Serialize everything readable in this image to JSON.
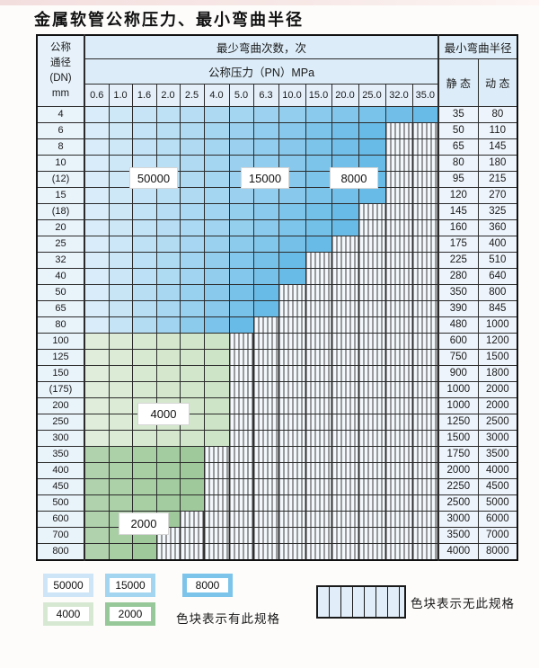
{
  "title": "金属软管公称压力、最小弯曲半径",
  "table": {
    "header": {
      "dn_lines": [
        "公称",
        "通径",
        "(DN)",
        "mm"
      ],
      "bend_cycles": "最少弯曲次数，次",
      "pressure": "公称压力（PN）MPa",
      "pressure_cols": [
        "0.6",
        "1.0",
        "1.6",
        "2.0",
        "2.5",
        "4.0",
        "5.0",
        "6.3",
        "10.0",
        "15.0",
        "20.0",
        "25.0",
        "32.0",
        "35.0"
      ],
      "radius": "最小弯曲半径",
      "static": "静 态",
      "dynamic": "动 态"
    },
    "rows": [
      {
        "dn": "4",
        "band": "blue",
        "max_pn": "35.0",
        "static": "35",
        "dynamic": "80"
      },
      {
        "dn": "6",
        "band": "blue",
        "max_pn": "25.0",
        "static": "50",
        "dynamic": "110"
      },
      {
        "dn": "8",
        "band": "blue",
        "max_pn": "25.0",
        "static": "65",
        "dynamic": "145"
      },
      {
        "dn": "10",
        "band": "blue",
        "max_pn": "25.0",
        "static": "80",
        "dynamic": "180"
      },
      {
        "dn": "(12)",
        "band": "blue",
        "max_pn": "25.0",
        "static": "95",
        "dynamic": "215"
      },
      {
        "dn": "15",
        "band": "blue",
        "max_pn": "25.0",
        "static": "120",
        "dynamic": "270"
      },
      {
        "dn": "(18)",
        "band": "blue",
        "max_pn": "20.0",
        "static": "145",
        "dynamic": "325"
      },
      {
        "dn": "20",
        "band": "blue",
        "max_pn": "20.0",
        "static": "160",
        "dynamic": "360"
      },
      {
        "dn": "25",
        "band": "blue",
        "max_pn": "15.0",
        "static": "175",
        "dynamic": "400"
      },
      {
        "dn": "32",
        "band": "blue",
        "max_pn": "10.0",
        "static": "225",
        "dynamic": "510"
      },
      {
        "dn": "40",
        "band": "blue",
        "max_pn": "10.0",
        "static": "280",
        "dynamic": "640"
      },
      {
        "dn": "50",
        "band": "blue",
        "max_pn": "6.3",
        "static": "350",
        "dynamic": "800"
      },
      {
        "dn": "65",
        "band": "blue",
        "max_pn": "6.3",
        "static": "390",
        "dynamic": "845"
      },
      {
        "dn": "80",
        "band": "blue",
        "max_pn": "5.0",
        "static": "480",
        "dynamic": "1000"
      },
      {
        "dn": "100",
        "band": "green1",
        "max_pn": "4.0",
        "static": "600",
        "dynamic": "1200"
      },
      {
        "dn": "125",
        "band": "green1",
        "max_pn": "4.0",
        "static": "750",
        "dynamic": "1500"
      },
      {
        "dn": "150",
        "band": "green1",
        "max_pn": "4.0",
        "static": "900",
        "dynamic": "1800"
      },
      {
        "dn": "(175)",
        "band": "green1",
        "max_pn": "4.0",
        "static": "1000",
        "dynamic": "2000"
      },
      {
        "dn": "200",
        "band": "green1",
        "max_pn": "4.0",
        "static": "1000",
        "dynamic": "2000"
      },
      {
        "dn": "250",
        "band": "green1",
        "max_pn": "4.0",
        "static": "1250",
        "dynamic": "2500"
      },
      {
        "dn": "300",
        "band": "green1",
        "max_pn": "4.0",
        "static": "1500",
        "dynamic": "3000"
      },
      {
        "dn": "350",
        "band": "green2",
        "max_pn": "2.5",
        "static": "1750",
        "dynamic": "3500"
      },
      {
        "dn": "400",
        "band": "green2",
        "max_pn": "2.5",
        "static": "2000",
        "dynamic": "4000"
      },
      {
        "dn": "450",
        "band": "green2",
        "max_pn": "2.5",
        "static": "2250",
        "dynamic": "4500"
      },
      {
        "dn": "500",
        "band": "green2",
        "max_pn": "2.5",
        "static": "2500",
        "dynamic": "5000"
      },
      {
        "dn": "600",
        "band": "green2",
        "max_pn": "2.0",
        "static": "3000",
        "dynamic": "6000"
      },
      {
        "dn": "700",
        "band": "green2",
        "max_pn": "1.6",
        "static": "3500",
        "dynamic": "7000"
      },
      {
        "dn": "800",
        "band": "green2",
        "max_pn": "1.6",
        "static": "4000",
        "dynamic": "8000"
      }
    ]
  },
  "labels": {
    "b50000": "50000",
    "b15000": "15000",
    "b8000": "8000",
    "g4000": "4000",
    "g2000": "2000"
  },
  "legend": {
    "available": [
      {
        "value": "50000",
        "color": "#cde5f6"
      },
      {
        "value": "15000",
        "color": "#a4d5f0"
      },
      {
        "value": "8000",
        "color": "#7cc4ea"
      },
      {
        "value": "4000",
        "color": "#d6e8d2"
      },
      {
        "value": "2000",
        "color": "#97c89a"
      }
    ],
    "available_note": "色块表示有此规格",
    "unavailable_note": "色块表示无此规格"
  },
  "colors": {
    "blue_light": "#d8ecf9",
    "blue_dark": "#68bbe7",
    "green_4000_light": "#dfedda",
    "green_4000_dark": "#cee4c6",
    "green_2000_light": "#b0d3ad",
    "green_2000_dark": "#9fc99b",
    "hatch_bg": "#f3f8fc",
    "grid_line": "#2b2b2b"
  }
}
